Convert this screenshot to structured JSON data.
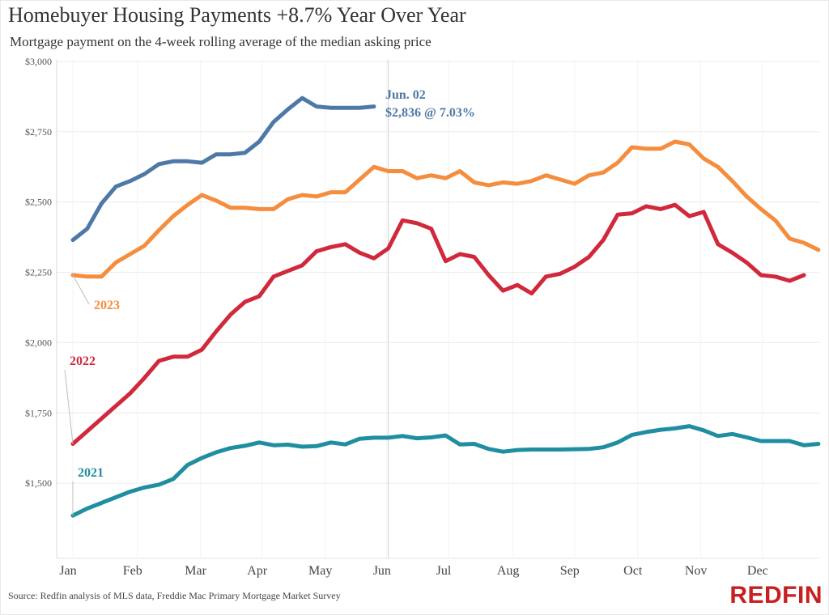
{
  "header": {
    "title": "Homebuyer Housing Payments +8.7% Year Over Year",
    "subtitle": "Mortgage payment on the 4-week rolling average of the median asking price"
  },
  "footer": {
    "source": "Source: Redfin analysis of MLS data, Freddie Mac Primary Mortgage Market Survey",
    "logo": "REDFIN",
    "logo_color": "#c82021"
  },
  "chart_data": {
    "type": "line",
    "title": "Homebuyer Housing Payments +8.7% Year Over Year",
    "subtitle": "Mortgage payment on the 4-week rolling average of the median asking price",
    "x_unit": "week of year",
    "xlim": [
      0,
      51.5
    ],
    "ylim": [
      1250,
      3000
    ],
    "y_ticks": [
      1500,
      1750,
      2000,
      2250,
      2500,
      2750,
      3000
    ],
    "y_tick_labels": [
      "$1,500",
      "$1,750",
      "$2,000",
      "$2,250",
      "$2,500",
      "$2,750",
      "$3,000"
    ],
    "month_ticks": [
      {
        "label": "Jan",
        "week": 0
      },
      {
        "label": "Feb",
        "week": 4.5
      },
      {
        "label": "Mar",
        "week": 8.9
      },
      {
        "label": "Apr",
        "week": 13.2
      },
      {
        "label": "May",
        "week": 17.6
      },
      {
        "label": "Jun",
        "week": 21.9
      },
      {
        "label": "Jul",
        "week": 26.2
      },
      {
        "label": "Aug",
        "week": 30.7
      },
      {
        "label": "Sep",
        "week": 35
      },
      {
        "label": "Oct",
        "week": 39.4
      },
      {
        "label": "Nov",
        "week": 43.8
      },
      {
        "label": "Dec",
        "week": 48.1
      }
    ],
    "grid": true,
    "reference_line_week": 22,
    "annotation": {
      "lines": [
        "Jun. 02",
        "$2,836 @ 7.03%"
      ],
      "color": "#4e79a7"
    },
    "series": [
      {
        "name": "2021",
        "color": "#1f8ea0",
        "values": [
          1385,
          1410,
          1430,
          1450,
          1470,
          1485,
          1495,
          1515,
          1565,
          1590,
          1610,
          1625,
          1633,
          1645,
          1635,
          1637,
          1630,
          1632,
          1645,
          1638,
          1658,
          1662,
          1662,
          1668,
          1660,
          1663,
          1670,
          1638,
          1640,
          1622,
          1612,
          1618,
          1620,
          1620,
          1620,
          1621,
          1622,
          1628,
          1645,
          1672,
          1682,
          1690,
          1695,
          1703,
          1688,
          1668,
          1675,
          1663,
          1650,
          1650,
          1650,
          1635,
          1640
        ]
      },
      {
        "name": "2022",
        "color": "#d1293c",
        "values": [
          1640,
          1685,
          1730,
          1775,
          1820,
          1875,
          1935,
          1950,
          1950,
          1975,
          2040,
          2100,
          2145,
          2165,
          2235,
          2255,
          2275,
          2325,
          2340,
          2350,
          2320,
          2300,
          2335,
          2435,
          2425,
          2405,
          2290,
          2315,
          2305,
          2240,
          2185,
          2205,
          2175,
          2235,
          2245,
          2270,
          2305,
          2365,
          2455,
          2460,
          2485,
          2475,
          2490,
          2450,
          2465,
          2350,
          2320,
          2285,
          2240,
          2235,
          2220,
          2240
        ]
      },
      {
        "name": "2023",
        "color": "#f58d3e",
        "values": [
          2240,
          2235,
          2235,
          2285,
          2315,
          2345,
          2400,
          2450,
          2490,
          2525,
          2505,
          2480,
          2480,
          2475,
          2475,
          2510,
          2525,
          2520,
          2535,
          2535,
          2580,
          2625,
          2610,
          2610,
          2585,
          2595,
          2585,
          2610,
          2570,
          2560,
          2570,
          2565,
          2575,
          2595,
          2580,
          2565,
          2595,
          2605,
          2640,
          2695,
          2690,
          2690,
          2715,
          2705,
          2655,
          2625,
          2575,
          2520,
          2475,
          2435,
          2370,
          2355,
          2330
        ]
      },
      {
        "name": "",
        "color": "#4e79a7",
        "values": [
          2365,
          2405,
          2495,
          2555,
          2575,
          2600,
          2635,
          2645,
          2645,
          2640,
          2670,
          2670,
          2675,
          2715,
          2785,
          2830,
          2870,
          2840,
          2835,
          2835,
          2835,
          2840
        ]
      }
    ]
  }
}
